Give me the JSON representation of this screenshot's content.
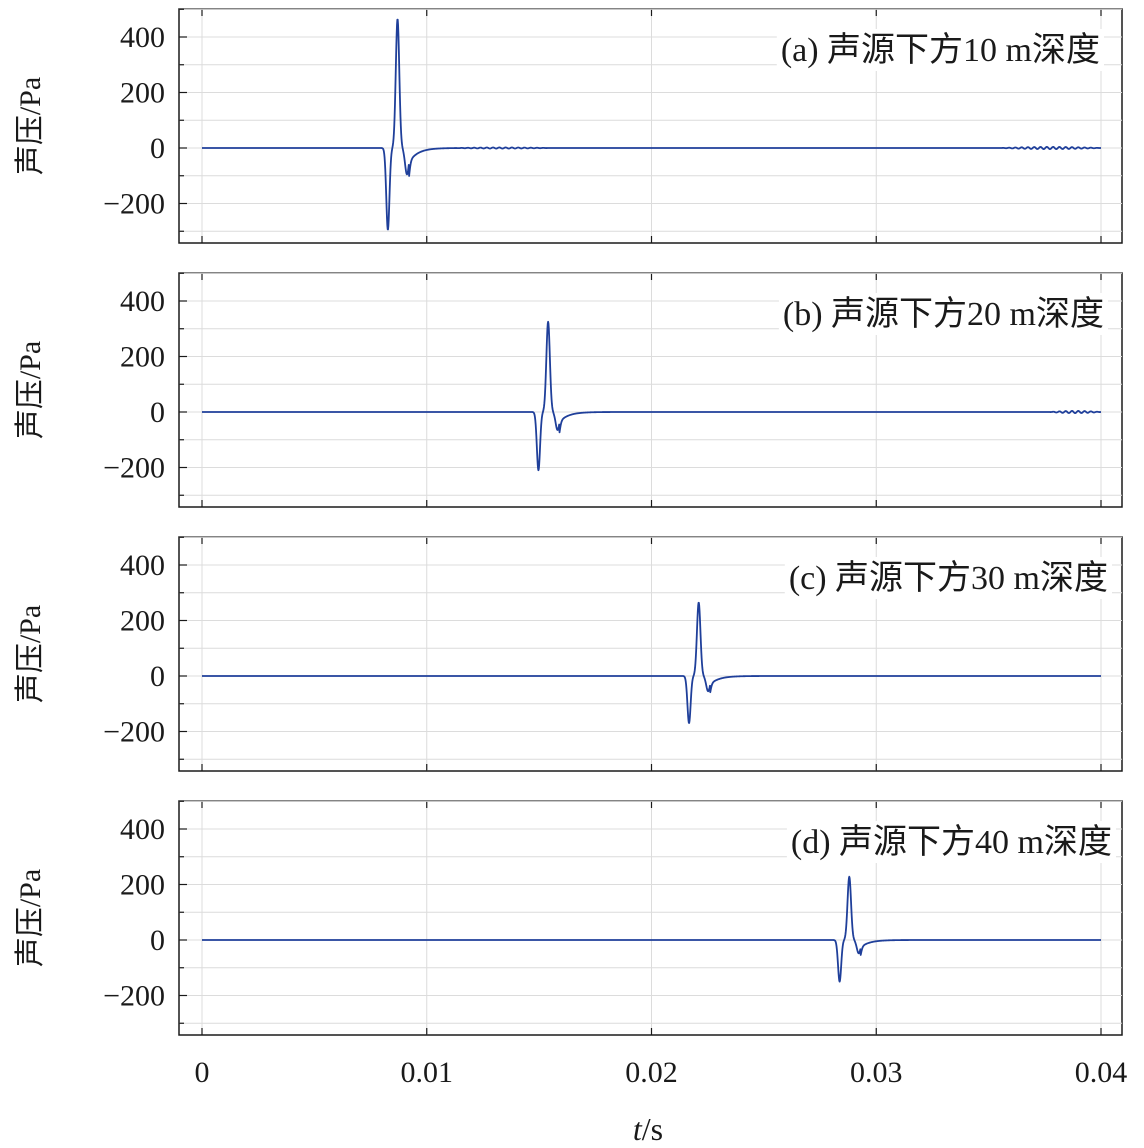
{
  "chart_data": {
    "type": "line",
    "colors": {
      "line": "#1f3f9a",
      "grid": "#dcdcdc",
      "axis": "#1a1a1a"
    },
    "x_label_italic": "t",
    "x_label_unit": "/s",
    "xlim": [
      0,
      0.04
    ],
    "x_ticks": [
      0,
      0.01,
      0.02,
      0.03,
      0.04
    ],
    "x_tick_labels": [
      "0",
      "0.01",
      "0.02",
      "0.03",
      "0.04"
    ],
    "ylim": [
      -330,
      510
    ],
    "y_ticks": [
      -200,
      0,
      200,
      400
    ],
    "y_tick_labels": [
      "−200",
      "0",
      "200",
      "400"
    ],
    "grid": true,
    "panels": [
      {
        "annotation": "(a) 声源下方10 m深度",
        "ylabel": "声压/Pa",
        "pulse_center_s": 0.0087,
        "peak_pa": 465,
        "trough_pa": -295,
        "after_trough_pa": -95,
        "ripple": [
          {
            "x_start": 0.0112,
            "x_end": 0.0155,
            "amplitude_pa": 2
          },
          {
            "x_start": 0.0355,
            "x_end": 0.04,
            "amplitude_pa": 4
          }
        ]
      },
      {
        "annotation": "(b) 声源下方20 m深度",
        "ylabel": "声压/Pa",
        "pulse_center_s": 0.0154,
        "peak_pa": 325,
        "trough_pa": -210,
        "after_trough_pa": -65,
        "ripple": [
          {
            "x_start": 0.0377,
            "x_end": 0.04,
            "amplitude_pa": 4
          }
        ]
      },
      {
        "annotation": "(c) 声源下方30 m深度",
        "ylabel": "声压/Pa",
        "pulse_center_s": 0.0221,
        "peak_pa": 265,
        "trough_pa": -170,
        "after_trough_pa": -55,
        "ripple": []
      },
      {
        "annotation": "(d) 声源下方40 m深度",
        "ylabel": "声压/Pa",
        "pulse_center_s": 0.0288,
        "peak_pa": 228,
        "trough_pa": -150,
        "after_trough_pa": -48,
        "ripple": []
      }
    ]
  }
}
